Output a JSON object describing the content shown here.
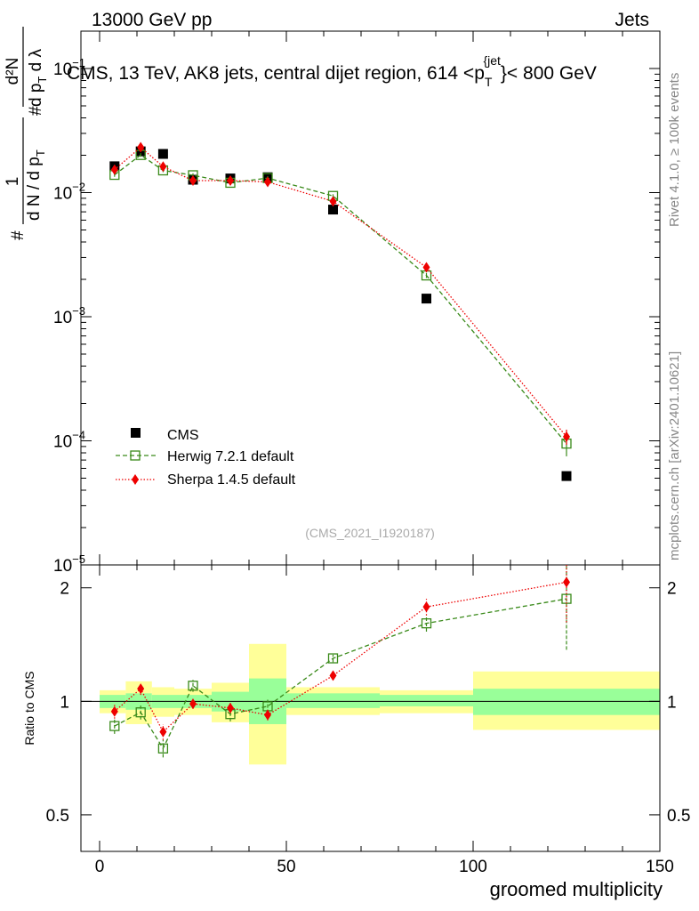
{
  "header": {
    "left": "13000 GeV pp",
    "right": "Jets"
  },
  "side_labels": {
    "rivet": "Rivet 4.1.0, ≥ 100k events",
    "mcplots": "mcplots.cern.ch [arXiv:2401.10621]"
  },
  "ylabel_main": {
    "line1_num": "1",
    "line1_den": "d N / d p",
    "line1_den_sub": "T",
    "line2_num": "d²N",
    "line2_den": "d p",
    "line2_den_sub": "T",
    "line2_den_tail": " d λ",
    "hash": "#"
  },
  "colors": {
    "cms": "#000000",
    "herwig": "#3a8a1a",
    "sherpa": "#ee0000",
    "band_inner": "#99ff99",
    "band_outer": "#ffff99"
  },
  "chart_data": [
    {
      "type": "scatter",
      "title": "CMS, 13 TeV, AK8 jets, central dijet region, 614 < p_T^{jet} < 800 GeV",
      "title_parts": {
        "pre": "CMS, 13 TeV, AK8 jets, central dijet region, 614 <p",
        "sup": "{jet",
        "sub": "T",
        "post": "}< 800 GeV"
      },
      "xlabel": "groomed multiplicity",
      "ylabel": "1/(dN/dp_T) d²N/(dp_T dλ)",
      "yscale": "log",
      "xlim": [
        -5,
        150
      ],
      "ylim": [
        1e-05,
        0.2
      ],
      "x_ticks": [
        0,
        50,
        100,
        150
      ],
      "y_ticks": [
        {
          "value": 1e-05,
          "base": "10",
          "exp": "−5"
        },
        {
          "value": 0.0001,
          "base": "10",
          "exp": "−4"
        },
        {
          "value": 0.001,
          "base": "10",
          "exp": "−3"
        },
        {
          "value": 0.01,
          "base": "10",
          "exp": "−2"
        },
        {
          "value": 0.1,
          "base": "10",
          "exp": "−1"
        }
      ],
      "watermark": "(CMS_2021_I1920187)",
      "series": [
        {
          "name": "CMS",
          "key": "cms",
          "x": [
            4,
            11,
            17,
            25,
            35,
            45,
            62.5,
            87.5,
            125
          ],
          "values": [
            0.0163,
            0.0215,
            0.0205,
            0.0127,
            0.013,
            0.0133,
            0.0073,
            0.0014,
            5.2e-05
          ]
        },
        {
          "name": "Herwig 7.2.1 default",
          "key": "herwig",
          "x": [
            4,
            11,
            17,
            25,
            35,
            45,
            62.5,
            87.5,
            125
          ],
          "values": [
            0.0139,
            0.0201,
            0.0151,
            0.0138,
            0.012,
            0.0131,
            0.0094,
            0.00215,
            9.5e-05
          ],
          "err_lo": [
            0.0005,
            0.0007,
            0.0005,
            0.0005,
            0.0004,
            0.0005,
            0.0003,
            0.0001,
            2e-05
          ],
          "err_hi": [
            0.0005,
            0.0007,
            0.0005,
            0.0005,
            0.0004,
            0.0005,
            0.0003,
            0.0001,
            2e-05
          ]
        },
        {
          "name": "Sherpa 1.4.5 default",
          "key": "sherpa",
          "x": [
            4,
            11,
            17,
            25,
            35,
            45,
            62.5,
            87.5,
            125
          ],
          "values": [
            0.0153,
            0.0232,
            0.0162,
            0.0125,
            0.0125,
            0.0122,
            0.0085,
            0.0025,
            0.000108
          ],
          "err_lo": [
            0.0005,
            0.0007,
            0.0005,
            0.0004,
            0.0004,
            0.0004,
            0.0003,
            0.0001,
            1.5e-05
          ],
          "err_hi": [
            0.0005,
            0.0007,
            0.0005,
            0.0004,
            0.0004,
            0.0004,
            0.0003,
            0.0001,
            1.5e-05
          ]
        }
      ]
    },
    {
      "type": "scatter",
      "ylabel": "Ratio to CMS",
      "xlabel": "groomed multiplicity",
      "yscale": "log",
      "xlim": [
        -5,
        150
      ],
      "ylim": [
        0.4,
        2.3
      ],
      "y_ticks": [
        0.5,
        1,
        2
      ],
      "bands": [
        {
          "x0": 0,
          "x1": 7,
          "inner": [
            0.96,
            1.04
          ],
          "outer": [
            0.93,
            1.07
          ]
        },
        {
          "x0": 7,
          "x1": 14,
          "inner": [
            0.95,
            1.05
          ],
          "outer": [
            0.87,
            1.13
          ]
        },
        {
          "x0": 14,
          "x1": 20,
          "inner": [
            0.96,
            1.04
          ],
          "outer": [
            0.91,
            1.09
          ]
        },
        {
          "x0": 20,
          "x1": 30,
          "inner": [
            0.96,
            1.04
          ],
          "outer": [
            0.92,
            1.08
          ]
        },
        {
          "x0": 30,
          "x1": 40,
          "inner": [
            0.94,
            1.06
          ],
          "outer": [
            0.88,
            1.12
          ]
        },
        {
          "x0": 40,
          "x1": 50,
          "inner": [
            0.87,
            1.15
          ],
          "outer": [
            0.68,
            1.42
          ]
        },
        {
          "x0": 50,
          "x1": 75,
          "inner": [
            0.96,
            1.05
          ],
          "outer": [
            0.92,
            1.09
          ]
        },
        {
          "x0": 75,
          "x1": 100,
          "inner": [
            0.97,
            1.04
          ],
          "outer": [
            0.93,
            1.07
          ]
        },
        {
          "x0": 100,
          "x1": 150,
          "inner": [
            0.92,
            1.08
          ],
          "outer": [
            0.84,
            1.2
          ]
        }
      ],
      "series": [
        {
          "name": "Herwig 7.2.1 default",
          "key": "herwig",
          "x": [
            4,
            11,
            17,
            25,
            35,
            45,
            62.5,
            87.5,
            125
          ],
          "values": [
            0.86,
            0.935,
            0.75,
            1.1,
            0.925,
            0.97,
            1.3,
            1.61,
            1.87
          ],
          "err_lo": [
            0.04,
            0.04,
            0.04,
            0.04,
            0.04,
            0.04,
            0.03,
            0.08,
            0.5
          ],
          "err_hi": [
            0.04,
            0.04,
            0.04,
            0.04,
            0.04,
            0.04,
            0.03,
            0.08,
            0.5
          ]
        },
        {
          "name": "Sherpa 1.4.5 default",
          "key": "sherpa",
          "x": [
            4,
            11,
            17,
            25,
            35,
            45,
            62.5,
            87.5,
            125
          ],
          "values": [
            0.94,
            1.08,
            0.83,
            0.985,
            0.96,
            0.92,
            1.17,
            1.78,
            2.07
          ],
          "err_lo": [
            0.04,
            0.04,
            0.04,
            0.03,
            0.03,
            0.03,
            0.03,
            0.09,
            0.45
          ],
          "err_hi": [
            0.04,
            0.04,
            0.04,
            0.03,
            0.03,
            0.03,
            0.03,
            0.09,
            0.45
          ]
        }
      ]
    }
  ]
}
